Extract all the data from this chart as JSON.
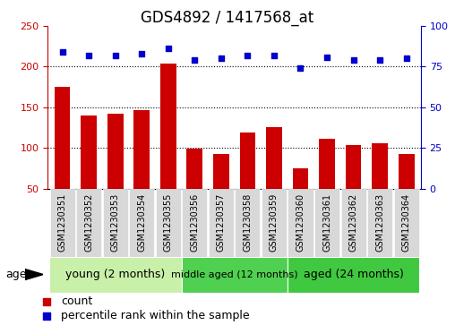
{
  "title": "GDS4892 / 1417568_at",
  "samples": [
    "GSM1230351",
    "GSM1230352",
    "GSM1230353",
    "GSM1230354",
    "GSM1230355",
    "GSM1230356",
    "GSM1230357",
    "GSM1230358",
    "GSM1230359",
    "GSM1230360",
    "GSM1230361",
    "GSM1230362",
    "GSM1230363",
    "GSM1230364"
  ],
  "counts": [
    175,
    140,
    142,
    147,
    204,
    99,
    93,
    119,
    125,
    75,
    111,
    104,
    106,
    93
  ],
  "percentiles": [
    84,
    82,
    82,
    83,
    86,
    79,
    80,
    82,
    82,
    74,
    81,
    79,
    79,
    80
  ],
  "bar_color": "#cc0000",
  "dot_color": "#0000cc",
  "ylim_left": [
    50,
    250
  ],
  "ylim_right": [
    0,
    100
  ],
  "yticks_left": [
    50,
    100,
    150,
    200,
    250
  ],
  "yticks_right": [
    0,
    25,
    50,
    75,
    100
  ],
  "grid_values": [
    100,
    150,
    200
  ],
  "groups": [
    {
      "label": "young (2 months)",
      "indices": [
        0,
        1,
        2,
        3,
        4
      ],
      "color": "#c8f0a8"
    },
    {
      "label": "middle aged (12 months)",
      "indices": [
        5,
        6,
        7,
        8
      ],
      "color": "#50d050"
    },
    {
      "label": "aged (24 months)",
      "indices": [
        9,
        10,
        11,
        12,
        13
      ],
      "color": "#40c840"
    }
  ],
  "age_label": "age",
  "legend_count_label": "count",
  "legend_percentile_label": "percentile rank within the sample",
  "title_fontsize": 12,
  "tick_fontsize": 8,
  "label_fontsize": 9,
  "group_label_sizes": [
    9,
    8,
    9
  ]
}
